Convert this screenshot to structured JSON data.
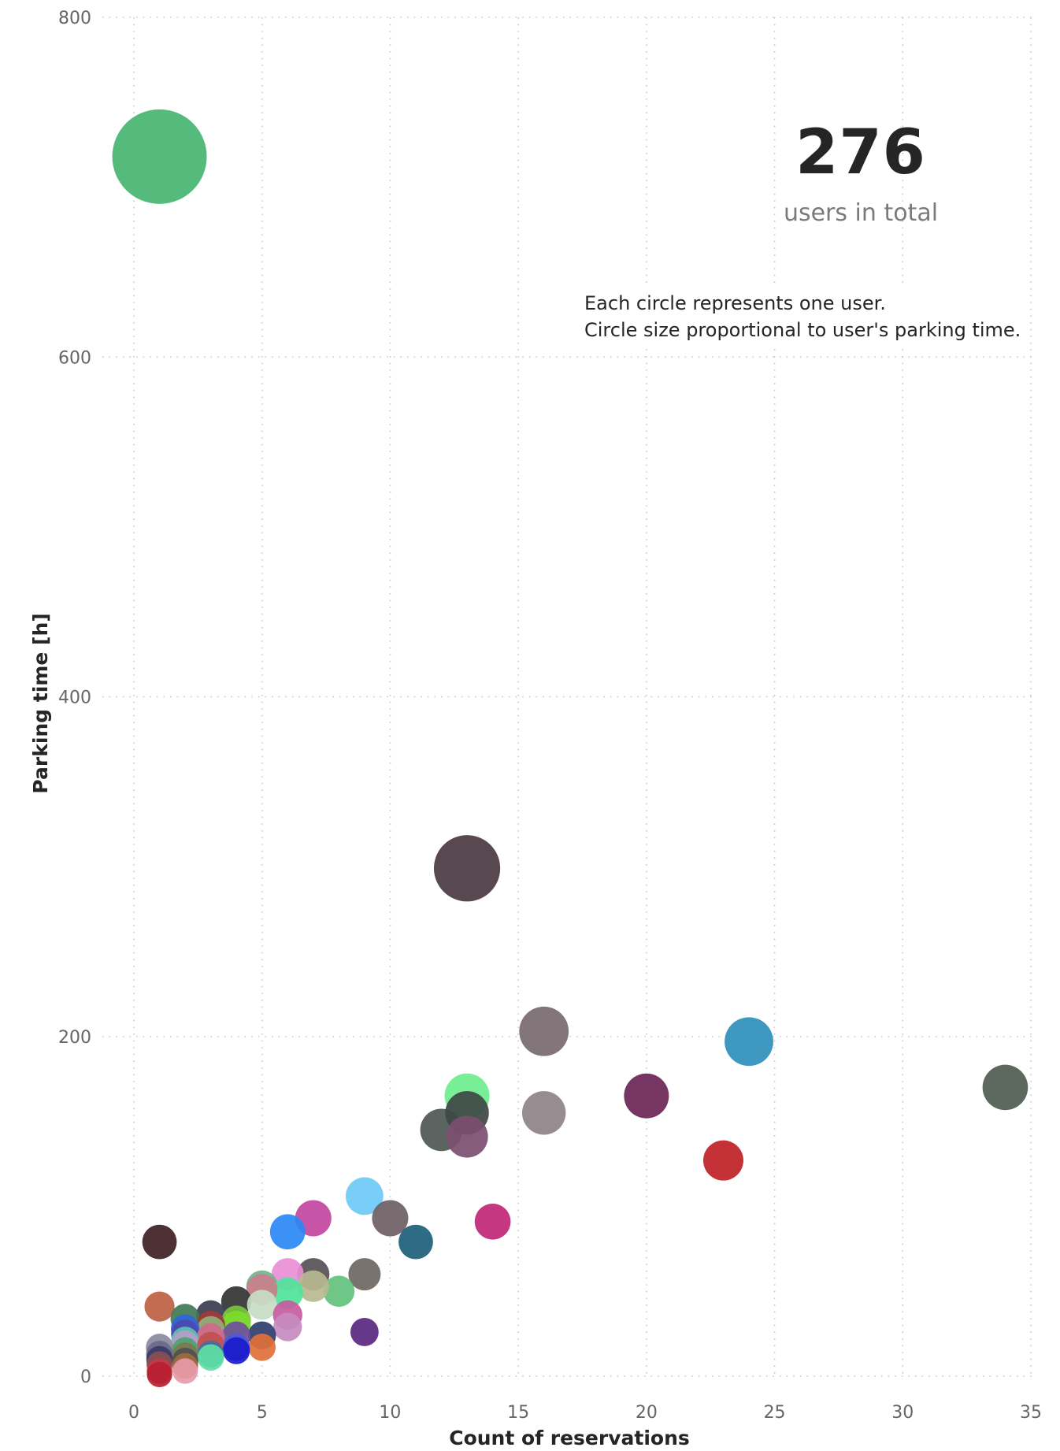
{
  "kpi": {
    "value": "276",
    "label": "users in total"
  },
  "note": {
    "line1": "Each circle represents one user.",
    "line2": "Circle size proportional to user's parking time."
  },
  "chart_data": {
    "type": "scatter",
    "xlabel": "Count of reservations",
    "ylabel": "Parking time [h]",
    "xlim": [
      0,
      35
    ],
    "ylim": [
      0,
      800
    ],
    "xticks": [
      "0",
      "5",
      "10",
      "15",
      "20",
      "25",
      "30",
      "35"
    ],
    "yticks": [
      "0",
      "200",
      "400",
      "600",
      "800"
    ],
    "xtick_values": [
      0,
      5,
      10,
      15,
      20,
      25,
      30,
      35
    ],
    "ytick_values": [
      0,
      200,
      400,
      600,
      800
    ],
    "grid": true,
    "size_encoding": "parking time",
    "points": [
      {
        "x": 1,
        "y": 718,
        "color": "#45b572"
      },
      {
        "x": 13,
        "y": 299,
        "color": "#4a3a42"
      },
      {
        "x": 16,
        "y": 203,
        "color": "#786a70"
      },
      {
        "x": 24,
        "y": 197,
        "color": "#2f8fba"
      },
      {
        "x": 34,
        "y": 170,
        "color": "#4f5c50"
      },
      {
        "x": 20,
        "y": 165,
        "color": "#6a2456"
      },
      {
        "x": 13,
        "y": 165,
        "color": "#6dee8e"
      },
      {
        "x": 16,
        "y": 155,
        "color": "#8e8388"
      },
      {
        "x": 12,
        "y": 145,
        "color": "#4d5752"
      },
      {
        "x": 13,
        "y": 155,
        "color": "#3e4744"
      },
      {
        "x": 13,
        "y": 141,
        "color": "#7b4f70"
      },
      {
        "x": 23,
        "y": 127,
        "color": "#bf2025"
      },
      {
        "x": 9,
        "y": 106,
        "color": "#6ccaf5"
      },
      {
        "x": 7,
        "y": 93,
        "color": "#c2459f"
      },
      {
        "x": 10,
        "y": 93,
        "color": "#6e6064"
      },
      {
        "x": 14,
        "y": 91,
        "color": "#c12677"
      },
      {
        "x": 6,
        "y": 85,
        "color": "#2b88f5"
      },
      {
        "x": 11,
        "y": 79,
        "color": "#1c5f78"
      },
      {
        "x": 1,
        "y": 79,
        "color": "#3e1f24"
      },
      {
        "x": 9,
        "y": 60,
        "color": "#6f665f"
      },
      {
        "x": 7,
        "y": 60,
        "color": "#555055"
      },
      {
        "x": 6,
        "y": 60,
        "color": "#e88fd6"
      },
      {
        "x": 5,
        "y": 53,
        "color": "#6fb58a"
      },
      {
        "x": 8,
        "y": 50,
        "color": "#62c27c"
      },
      {
        "x": 7,
        "y": 53,
        "color": "#b8b890"
      },
      {
        "x": 6,
        "y": 49,
        "color": "#4ee49a"
      },
      {
        "x": 5,
        "y": 51,
        "color": "#c97f8a"
      },
      {
        "x": 4,
        "y": 44,
        "color": "#333333"
      },
      {
        "x": 5,
        "y": 42,
        "color": "#c8dcc5"
      },
      {
        "x": 1,
        "y": 41,
        "color": "#bd5f42"
      },
      {
        "x": 3,
        "y": 36,
        "color": "#3c3c50"
      },
      {
        "x": 2,
        "y": 34,
        "color": "#3f7a55"
      },
      {
        "x": 6,
        "y": 36,
        "color": "#c75b9e"
      },
      {
        "x": 4,
        "y": 33,
        "color": "#79c33d"
      },
      {
        "x": 4,
        "y": 30,
        "color": "#7cdb2b"
      },
      {
        "x": 3,
        "y": 30,
        "color": "#a33a3a"
      },
      {
        "x": 6,
        "y": 29,
        "color": "#c68bbf"
      },
      {
        "x": 3,
        "y": 27,
        "color": "#8fb07a"
      },
      {
        "x": 2,
        "y": 28,
        "color": "#2f65d8"
      },
      {
        "x": 9,
        "y": 26,
        "color": "#5a2780"
      },
      {
        "x": 2,
        "y": 25,
        "color": "#4a4ab0"
      },
      {
        "x": 5,
        "y": 24,
        "color": "#2e3d6b"
      },
      {
        "x": 4,
        "y": 24,
        "color": "#6f4fa0"
      },
      {
        "x": 3,
        "y": 23,
        "color": "#d06a8a"
      },
      {
        "x": 2,
        "y": 21,
        "color": "#5bc2b0"
      },
      {
        "x": 2,
        "y": 19,
        "color": "#b3a0c8"
      },
      {
        "x": 3,
        "y": 18,
        "color": "#c05050"
      },
      {
        "x": 5,
        "y": 17,
        "color": "#e0703a"
      },
      {
        "x": 4,
        "y": 17,
        "color": "#4a5ad8"
      },
      {
        "x": 1,
        "y": 17,
        "color": "#8a8aa0"
      },
      {
        "x": 4,
        "y": 15,
        "color": "#1a1acc"
      },
      {
        "x": 2,
        "y": 15,
        "color": "#50a070"
      },
      {
        "x": 1,
        "y": 13,
        "color": "#6a6a8a"
      },
      {
        "x": 3,
        "y": 13,
        "color": "#3f6fa0"
      },
      {
        "x": 2,
        "y": 12,
        "color": "#7a7a50"
      },
      {
        "x": 3,
        "y": 11,
        "color": "#5de0a5"
      },
      {
        "x": 1,
        "y": 10,
        "color": "#3a3a6a"
      },
      {
        "x": 2,
        "y": 9,
        "color": "#505050"
      },
      {
        "x": 1,
        "y": 7,
        "color": "#8a5050"
      },
      {
        "x": 2,
        "y": 6,
        "color": "#a06a40"
      },
      {
        "x": 2,
        "y": 3,
        "color": "#e79aa8"
      },
      {
        "x": 1,
        "y": 3,
        "color": "#c23a4a"
      },
      {
        "x": 1,
        "y": 1,
        "color": "#b82030"
      }
    ]
  }
}
